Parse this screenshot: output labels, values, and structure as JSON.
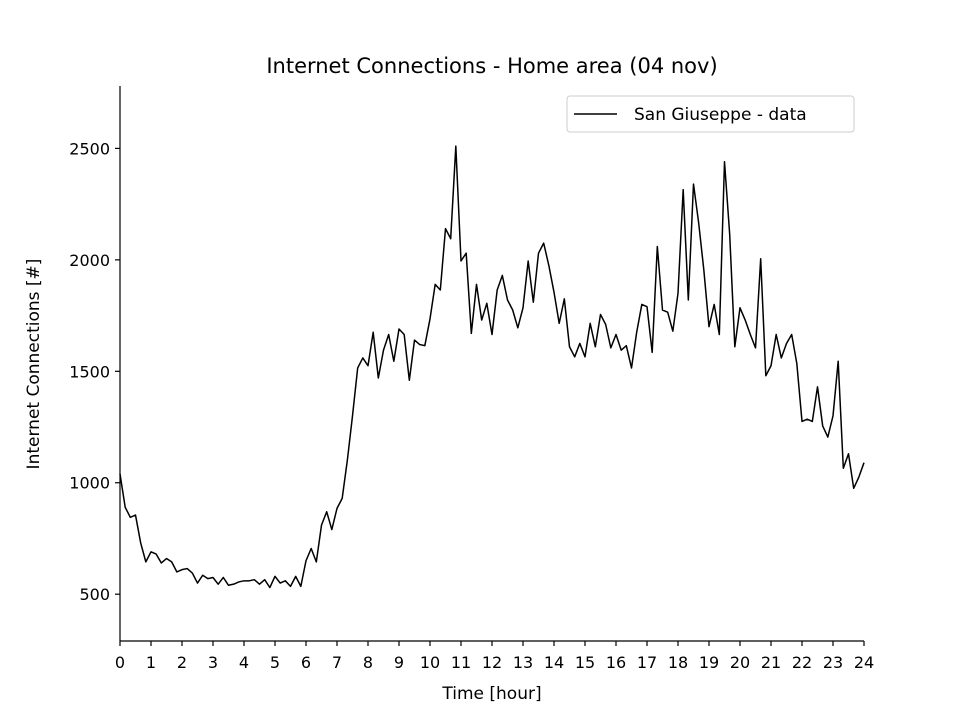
{
  "chart_data": {
    "type": "line",
    "title": "Internet Connections - Home area (04 nov)",
    "xlabel": "Time [hour]",
    "ylabel": "Internet Connections [#]",
    "xlim": [
      0,
      24
    ],
    "ylim": [
      290,
      2780
    ],
    "xticks": [
      "0",
      "1",
      "2",
      "3",
      "4",
      "5",
      "6",
      "7",
      "8",
      "9",
      "10",
      "11",
      "12",
      "13",
      "14",
      "15",
      "16",
      "17",
      "18",
      "19",
      "20",
      "21",
      "22",
      "23",
      "24"
    ],
    "yticks": [
      "500",
      "1000",
      "1500",
      "2000",
      "2500"
    ],
    "grid": false,
    "legend_position": "top-right",
    "line_color": "#000000",
    "series": [
      {
        "name": "San Giuseppe - data",
        "x": [
          0,
          0.167,
          0.333,
          0.5,
          0.667,
          0.833,
          1,
          1.167,
          1.333,
          1.5,
          1.667,
          1.833,
          2,
          2.167,
          2.333,
          2.5,
          2.667,
          2.833,
          3,
          3.167,
          3.333,
          3.5,
          3.667,
          3.833,
          4,
          4.167,
          4.333,
          4.5,
          4.667,
          4.833,
          5,
          5.167,
          5.333,
          5.5,
          5.667,
          5.833,
          6,
          6.167,
          6.333,
          6.5,
          6.667,
          6.833,
          7,
          7.167,
          7.333,
          7.5,
          7.667,
          7.833,
          8,
          8.167,
          8.333,
          8.5,
          8.667,
          8.833,
          9,
          9.167,
          9.333,
          9.5,
          9.667,
          9.833,
          10,
          10.167,
          10.333,
          10.5,
          10.667,
          10.833,
          11,
          11.167,
          11.333,
          11.5,
          11.667,
          11.833,
          12,
          12.167,
          12.333,
          12.5,
          12.667,
          12.833,
          13,
          13.167,
          13.333,
          13.5,
          13.667,
          13.833,
          14,
          14.167,
          14.333,
          14.5,
          14.667,
          14.833,
          15,
          15.167,
          15.333,
          15.5,
          15.667,
          15.833,
          16,
          16.167,
          16.333,
          16.5,
          16.667,
          16.833,
          17,
          17.167,
          17.333,
          17.5,
          17.667,
          17.833,
          18,
          18.167,
          18.333,
          18.5,
          18.667,
          18.833,
          19,
          19.167,
          19.333,
          19.5,
          19.667,
          19.833,
          20,
          20.167,
          20.333,
          20.5,
          20.667,
          20.833,
          21,
          21.167,
          21.333,
          21.5,
          21.667,
          21.833,
          22,
          22.167,
          22.333,
          22.5,
          22.667,
          22.833,
          23,
          23.167,
          23.333,
          23.5,
          23.667,
          23.833,
          24
        ],
        "y": [
          1040,
          890,
          845,
          855,
          730,
          645,
          690,
          680,
          640,
          660,
          645,
          600,
          610,
          615,
          595,
          550,
          585,
          570,
          575,
          545,
          575,
          540,
          545,
          555,
          560,
          560,
          565,
          545,
          565,
          530,
          580,
          550,
          560,
          535,
          580,
          535,
          650,
          705,
          645,
          810,
          870,
          790,
          885,
          930,
          1100,
          1300,
          1515,
          1560,
          1525,
          1675,
          1470,
          1595,
          1665,
          1545,
          1690,
          1665,
          1460,
          1640,
          1620,
          1615,
          1735,
          1890,
          1865,
          2140,
          2095,
          2510,
          1995,
          2030,
          1670,
          1890,
          1730,
          1805,
          1665,
          1865,
          1930,
          1820,
          1775,
          1695,
          1785,
          1995,
          1810,
          2030,
          2075,
          1975,
          1855,
          1715,
          1825,
          1610,
          1565,
          1625,
          1565,
          1715,
          1610,
          1755,
          1710,
          1605,
          1665,
          1595,
          1615,
          1515,
          1675,
          1800,
          1790,
          1585,
          2060,
          1775,
          1765,
          1680,
          1850,
          2315,
          1820,
          2340,
          2165,
          1955,
          1700,
          1800,
          1665,
          2440,
          2115,
          1610,
          1785,
          1730,
          1665,
          1605,
          2005,
          1480,
          1525,
          1665,
          1560,
          1625,
          1665,
          1535,
          1275,
          1285,
          1275,
          1430,
          1255,
          1205,
          1300,
          1545,
          1065,
          1130,
          975,
          1025,
          1090
        ]
      }
    ]
  }
}
